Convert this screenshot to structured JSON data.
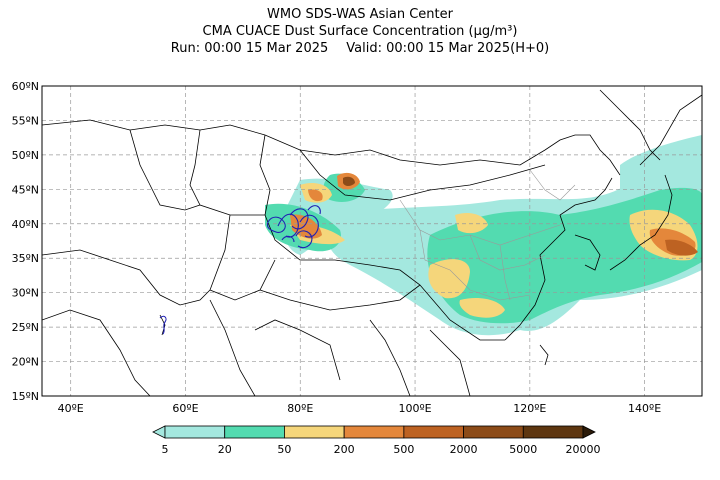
{
  "header": {
    "title": "WMO SDS-WAS Asian Center",
    "subtitle": "CMA CUACE Dust Surface Concentration (μg/m³)",
    "run_label": "Run: 00:00 15 Mar 2025",
    "valid_label": "Valid: 00:00 15 Mar 2025(H+0)"
  },
  "map": {
    "lat_labels": [
      "60ºN",
      "55ºN",
      "50ºN",
      "45ºN",
      "40ºN",
      "35ºN",
      "30ºN",
      "25ºN",
      "20ºN",
      "15ºN"
    ],
    "lat_values": [
      60,
      55,
      50,
      45,
      40,
      35,
      30,
      25,
      20,
      15
    ],
    "lon_labels": [
      "40ºE",
      "60ºE",
      "80ºE",
      "100ºE",
      "120ºE",
      "140ºE"
    ],
    "lon_values": [
      40,
      60,
      80,
      100,
      120,
      140
    ],
    "extent": {
      "lon_min": 35,
      "lon_max": 150,
      "lat_min": 15,
      "lat_max": 60
    },
    "grid": true
  },
  "colorbar": {
    "tick_labels": [
      "5",
      "20",
      "50",
      "200",
      "500",
      "2000",
      "5000",
      "20000"
    ],
    "colors": [
      "#a4e8df",
      "#53dbb0",
      "#f5d67b",
      "#e4873b",
      "#bd6222",
      "#8c4b18",
      "#5e3610",
      "#2b1a08"
    ],
    "extend": "both"
  },
  "contour_color": "#1f1fb4"
}
